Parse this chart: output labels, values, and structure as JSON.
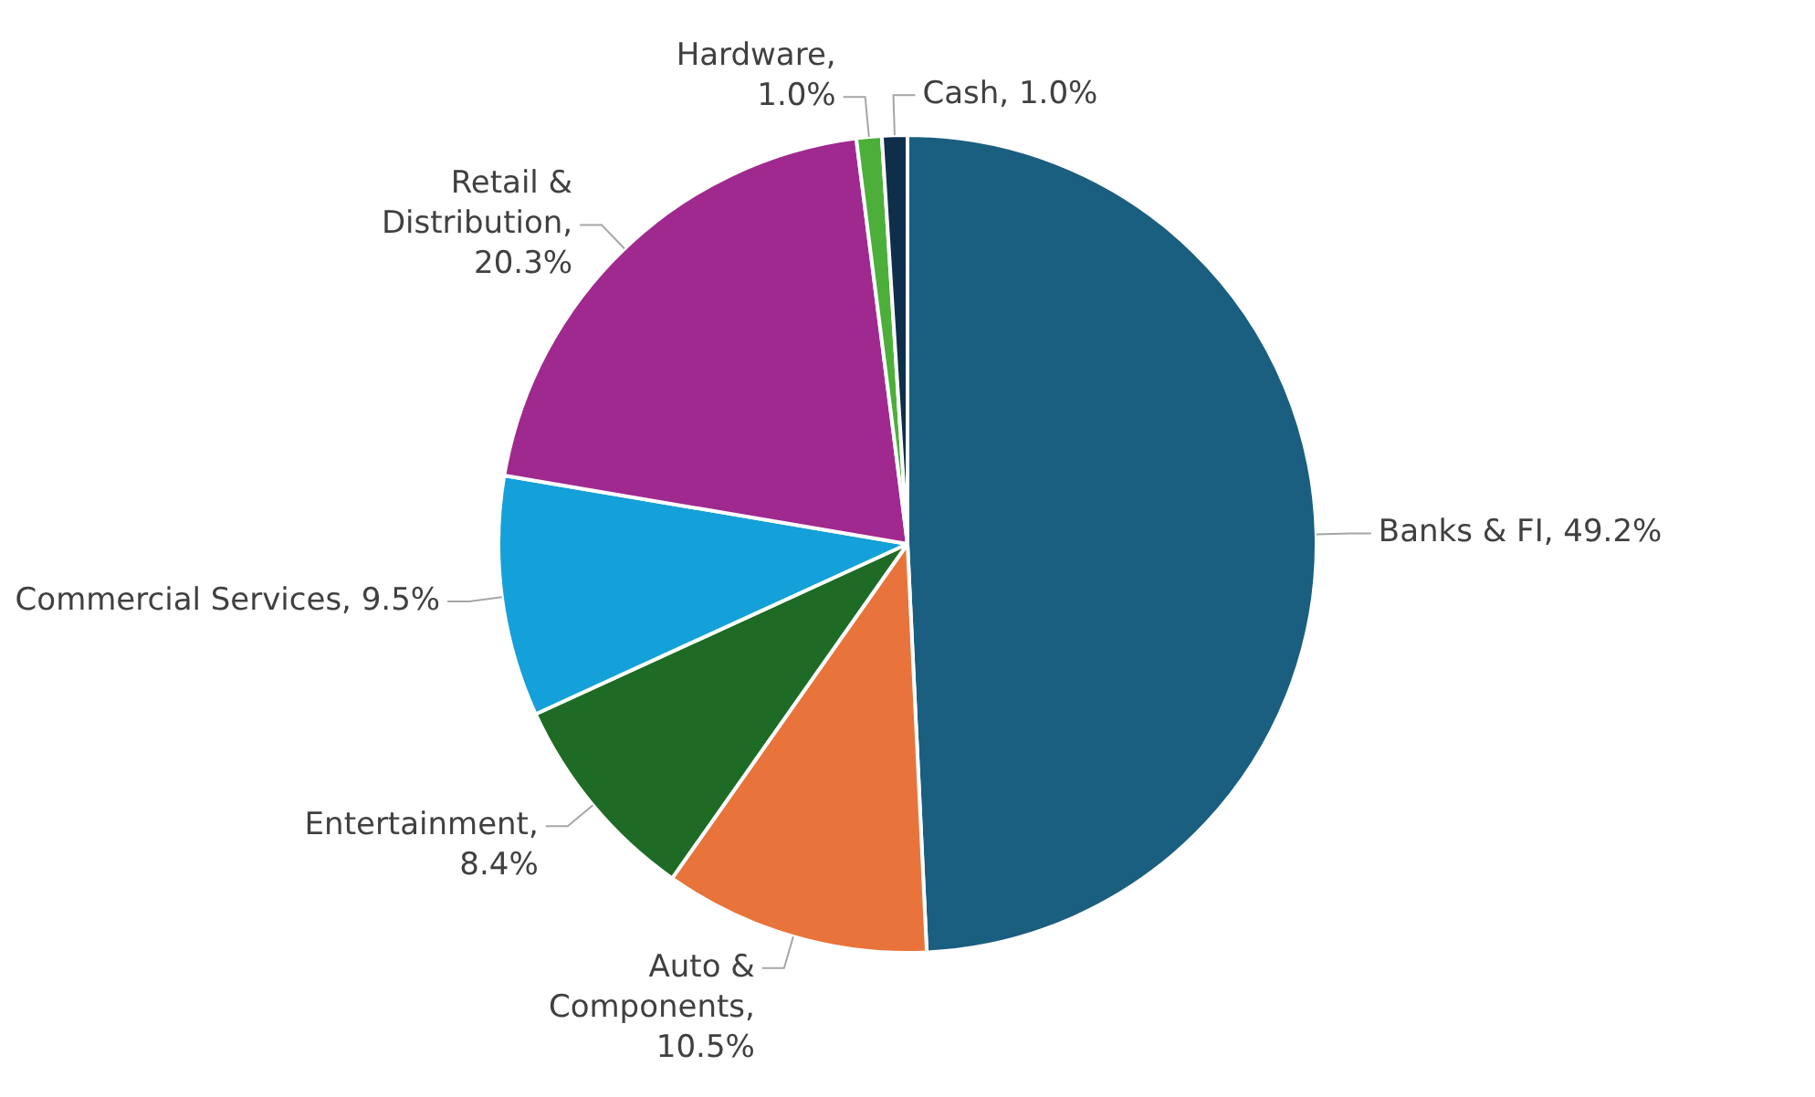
{
  "chart_data": {
    "type": "pie",
    "categories": [
      "Banks & FI",
      "Auto & Components",
      "Entertainment",
      "Commercial Services",
      "Retail & Distribution",
      "Hardware",
      "Cash"
    ],
    "values": [
      49.2,
      10.5,
      8.4,
      9.5,
      20.3,
      1.0,
      1.0
    ],
    "value_labels": [
      ", 49.2%",
      ", 10.5%",
      ", 8.4%",
      ", 9.5%",
      ", 20.3%",
      ", 1.0%",
      ", 1.0%"
    ],
    "colors": [
      "#1a5e80",
      "#e8743b",
      "#1e6b26",
      "#14a0d8",
      "#a0298f",
      "#4caf3a",
      "#0f2e4a"
    ],
    "legend": false
  }
}
